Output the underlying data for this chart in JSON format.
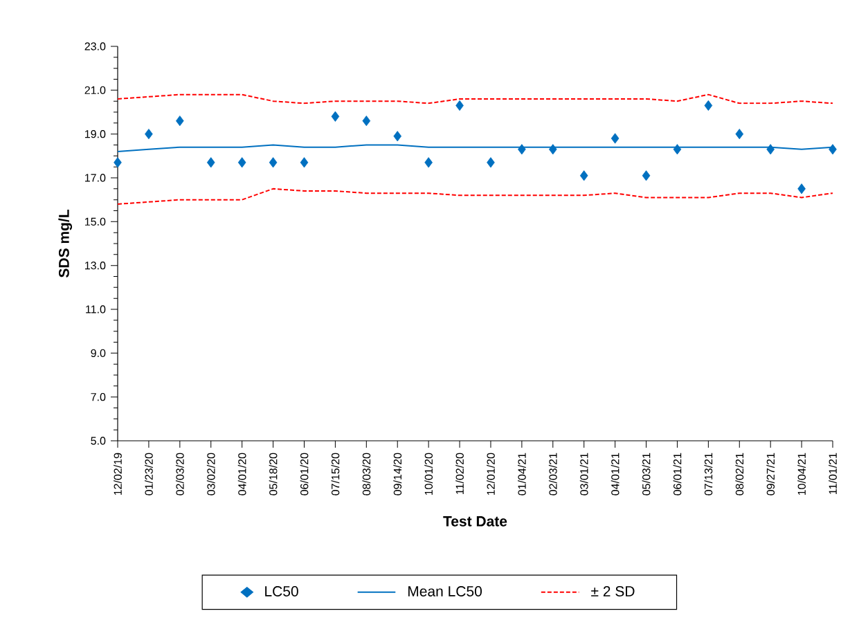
{
  "chart_data": {
    "type": "scatter",
    "xlabel": "Test Date",
    "ylabel": "SDS mg/L",
    "categories": [
      "12/02/19",
      "01/23/20",
      "02/03/20",
      "03/02/20",
      "04/01/20",
      "05/18/20",
      "06/01/20",
      "07/15/20",
      "08/03/20",
      "09/14/20",
      "10/01/20",
      "11/02/20",
      "12/01/20",
      "01/04/21",
      "02/03/21",
      "03/01/21",
      "04/01/21",
      "05/03/21",
      "06/01/21",
      "07/13/21",
      "08/02/21",
      "09/27/21",
      "10/04/21",
      "11/01/21"
    ],
    "series": [
      {
        "name": "LC50",
        "marker": "diamond",
        "color": "#0070c0",
        "values": [
          17.7,
          19.0,
          19.6,
          17.7,
          17.7,
          17.7,
          17.7,
          19.8,
          19.6,
          18.9,
          17.7,
          20.3,
          17.7,
          18.3,
          18.3,
          17.1,
          18.8,
          17.1,
          18.3,
          20.3,
          19.0,
          18.3,
          16.5,
          18.3
        ]
      },
      {
        "name": "Mean LC50",
        "type": "line",
        "marker": "none",
        "line_style": "solid",
        "color": "#0070c0",
        "values": [
          18.2,
          18.3,
          18.4,
          18.4,
          18.4,
          18.5,
          18.4,
          18.4,
          18.5,
          18.5,
          18.4,
          18.4,
          18.4,
          18.4,
          18.4,
          18.4,
          18.4,
          18.4,
          18.4,
          18.4,
          18.4,
          18.4,
          18.3,
          18.4
        ]
      },
      {
        "name": "± 2 SD",
        "type": "line",
        "marker": "none",
        "line_style": "dashed",
        "color": "#ff0000",
        "values": [
          20.6,
          20.7,
          20.8,
          20.8,
          20.8,
          20.5,
          20.4,
          20.5,
          20.5,
          20.5,
          20.4,
          20.6,
          20.6,
          20.6,
          20.6,
          20.6,
          20.6,
          20.6,
          20.5,
          20.8,
          20.4,
          20.4,
          20.5,
          20.4
        ]
      },
      {
        "type": "line",
        "marker": "none",
        "line_style": "dashed",
        "color": "#ff0000",
        "values": [
          15.8,
          15.9,
          16.0,
          16.0,
          16.0,
          16.5,
          16.4,
          16.4,
          16.3,
          16.3,
          16.3,
          16.2,
          16.2,
          16.2,
          16.2,
          16.2,
          16.3,
          16.1,
          16.1,
          16.1,
          16.3,
          16.3,
          16.1,
          16.3
        ]
      }
    ],
    "ylim": [
      5.0,
      23.0
    ],
    "yticks": [
      {
        "value": 5,
        "label": "5.0"
      },
      {
        "value": 7,
        "label": "7.0"
      },
      {
        "value": 9,
        "label": "9.0"
      },
      {
        "value": 11,
        "label": "11.0"
      },
      {
        "value": 13,
        "label": "13.0"
      },
      {
        "value": 15,
        "label": "15.0"
      },
      {
        "value": 17,
        "label": "17.0"
      },
      {
        "value": 19,
        "label": "19.0"
      },
      {
        "value": 21,
        "label": "21.0"
      },
      {
        "value": 23,
        "label": "23.0"
      }
    ],
    "grid": false,
    "legend": "bottom"
  }
}
